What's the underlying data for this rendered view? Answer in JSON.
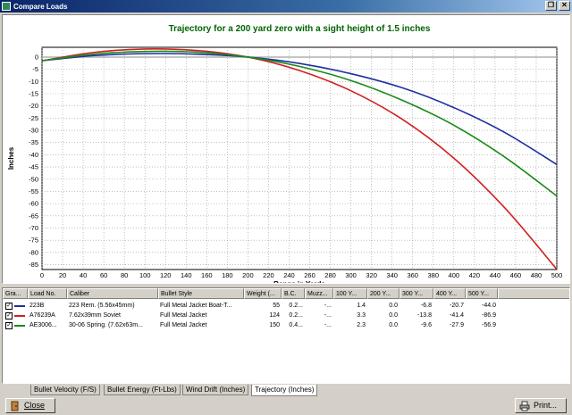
{
  "window": {
    "title": "Compare Loads",
    "restore_glyph": "❐",
    "close_glyph": "✕"
  },
  "chart_data": {
    "type": "line",
    "title": "Trajectory for a 200 yard zero with a sight height of 1.5 inches",
    "xlabel": "Range in Yards",
    "ylabel": "Inches",
    "xlim": [
      0,
      500
    ],
    "ylim": [
      -87,
      4
    ],
    "xticks": [
      0,
      20,
      40,
      60,
      80,
      100,
      120,
      140,
      160,
      180,
      200,
      220,
      240,
      260,
      280,
      300,
      320,
      340,
      360,
      380,
      400,
      420,
      440,
      460,
      480,
      500
    ],
    "yticks": [
      0,
      -5,
      -10,
      -15,
      -20,
      -25,
      -30,
      -35,
      -40,
      -45,
      -50,
      -55,
      -60,
      -65,
      -70,
      -75,
      -80,
      -85
    ],
    "grid": true,
    "zero_line_color": "#b0b0b0",
    "title_color": "#006400",
    "series": [
      {
        "color": "#1f2fa0",
        "x": [
          0,
          50,
          100,
          150,
          200,
          250,
          300,
          350,
          400,
          450,
          500
        ],
        "y": [
          -1.5,
          0.6,
          1.4,
          1.2,
          0.0,
          -2.6,
          -6.8,
          -12.6,
          -20.7,
          -31.0,
          -44.0
        ]
      },
      {
        "color": "#d02020",
        "x": [
          0,
          50,
          100,
          150,
          200,
          250,
          300,
          350,
          400,
          450,
          500
        ],
        "y": [
          -1.5,
          1.9,
          3.3,
          2.7,
          0.0,
          -5.5,
          -13.8,
          -25.5,
          -41.4,
          -62.0,
          -86.9
        ]
      },
      {
        "color": "#1a8a1a",
        "x": [
          0,
          50,
          100,
          150,
          200,
          250,
          300,
          350,
          400,
          450,
          500
        ],
        "y": [
          -1.5,
          1.2,
          2.3,
          2.0,
          0.0,
          -3.8,
          -9.6,
          -17.7,
          -27.9,
          -41.1,
          -56.9
        ]
      }
    ]
  },
  "grid": {
    "columns": [
      "Gra...",
      "Load No.",
      "Caliber",
      "Bullet Style",
      "Weight (...",
      "B.C.",
      "Muzz...",
      "100 Y...",
      "200 Y...",
      "300 Y...",
      "400 Y...",
      "500 Y..."
    ],
    "rows": [
      {
        "checked": "✓",
        "color": "#1f2fa0",
        "load_no": "223B",
        "caliber": "223 Rem. (5.56x45mm)",
        "bullet": "Full Metal Jacket Boat-T...",
        "weight": "55",
        "bc": "0.2...",
        "muzz": "-...",
        "y100": "1.4",
        "y200": "0.0",
        "y300": "-6.8",
        "y400": "-20.7",
        "y500": "-44.0"
      },
      {
        "checked": "✓",
        "color": "#d02020",
        "load_no": "A76239A",
        "caliber": "7.62x39mm Soviet",
        "bullet": "Full Metal Jacket",
        "weight": "124",
        "bc": "0.2...",
        "muzz": "-...",
        "y100": "3.3",
        "y200": "0.0",
        "y300": "-13.8",
        "y400": "-41.4",
        "y500": "-86.9"
      },
      {
        "checked": "✓",
        "color": "#1a8a1a",
        "load_no": "AE3006...",
        "caliber": "30-06 Spring. (7.62x63m...",
        "bullet": "Full Metal Jacket",
        "weight": "150",
        "bc": "0.4...",
        "muzz": "-...",
        "y100": "2.3",
        "y200": "0.0",
        "y300": "-9.6",
        "y400": "-27.9",
        "y500": "-56.9"
      }
    ]
  },
  "tabs": [
    "Bullet Velocity (F/S)",
    "Bullet Energy (Ft-Lbs)",
    "Wind Drift (Inches)",
    "Trajectory (Inches)"
  ],
  "buttons": {
    "close": "Close",
    "print": "Print..."
  }
}
